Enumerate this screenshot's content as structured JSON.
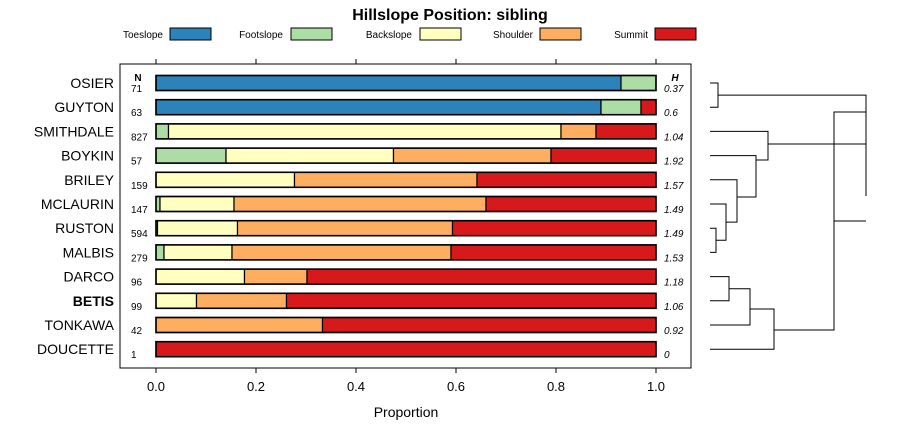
{
  "chart_data": {
    "type": "bar",
    "orientation": "horizontal",
    "stacked": true,
    "title": "Hillslope Position: sibling",
    "xlabel": "Proportion",
    "ylabel": "",
    "xlim": [
      0,
      1
    ],
    "x_ticks": [
      0.0,
      0.2,
      0.4,
      0.6,
      0.8,
      1.0
    ],
    "x_tick_labels": [
      "0.0",
      "0.2",
      "0.4",
      "0.6",
      "0.8",
      "1.0"
    ],
    "n_header": "N",
    "h_header": "H",
    "legend_position": "top",
    "series": [
      {
        "name": "Toeslope",
        "color": "#2b83ba"
      },
      {
        "name": "Footslope",
        "color": "#abdda4"
      },
      {
        "name": "Backslope",
        "color": "#ffffbf"
      },
      {
        "name": "Shoulder",
        "color": "#fdae61"
      },
      {
        "name": "Summit",
        "color": "#d7191c"
      }
    ],
    "categories": [
      {
        "name": "OSIER",
        "n": "71",
        "h": "0.37",
        "bold": false,
        "values": [
          0.93,
          0.07,
          0,
          0,
          0
        ]
      },
      {
        "name": "GUYTON",
        "n": "63",
        "h": "0.6",
        "bold": false,
        "values": [
          0.89,
          0.08,
          0,
          0,
          0.03
        ]
      },
      {
        "name": "SMITHDALE",
        "n": "827",
        "h": "1.04",
        "bold": false,
        "values": [
          0,
          0.025,
          0.785,
          0.07,
          0.12
        ]
      },
      {
        "name": "BOYKIN",
        "n": "57",
        "h": "1.92",
        "bold": false,
        "values": [
          0,
          0.14,
          0.335,
          0.315,
          0.21
        ]
      },
      {
        "name": "BRILEY",
        "n": "159",
        "h": "1.57",
        "bold": false,
        "values": [
          0,
          0,
          0.277,
          0.365,
          0.358
        ]
      },
      {
        "name": "MCLAURIN",
        "n": "147",
        "h": "1.49",
        "bold": false,
        "values": [
          0,
          0.008,
          0.148,
          0.504,
          0.34
        ]
      },
      {
        "name": "RUSTON",
        "n": "594",
        "h": "1.49",
        "bold": false,
        "values": [
          0,
          0.003,
          0.16,
          0.43,
          0.407
        ]
      },
      {
        "name": "MALBIS",
        "n": "279",
        "h": "1.53",
        "bold": false,
        "values": [
          0,
          0.016,
          0.136,
          0.438,
          0.41
        ]
      },
      {
        "name": "DARCO",
        "n": "96",
        "h": "1.18",
        "bold": false,
        "values": [
          0,
          0,
          0.177,
          0.125,
          0.698
        ]
      },
      {
        "name": "BETIS",
        "n": "99",
        "h": "1.06",
        "bold": true,
        "values": [
          0,
          0,
          0.081,
          0.18,
          0.739
        ]
      },
      {
        "name": "TONKAWA",
        "n": "42",
        "h": "0.92",
        "bold": false,
        "values": [
          0,
          0,
          0,
          0.333,
          0.667
        ]
      },
      {
        "name": "DOUCETTE",
        "n": "1",
        "h": "0",
        "bold": false,
        "values": [
          0,
          0,
          0,
          0,
          1.0
        ]
      }
    ]
  }
}
